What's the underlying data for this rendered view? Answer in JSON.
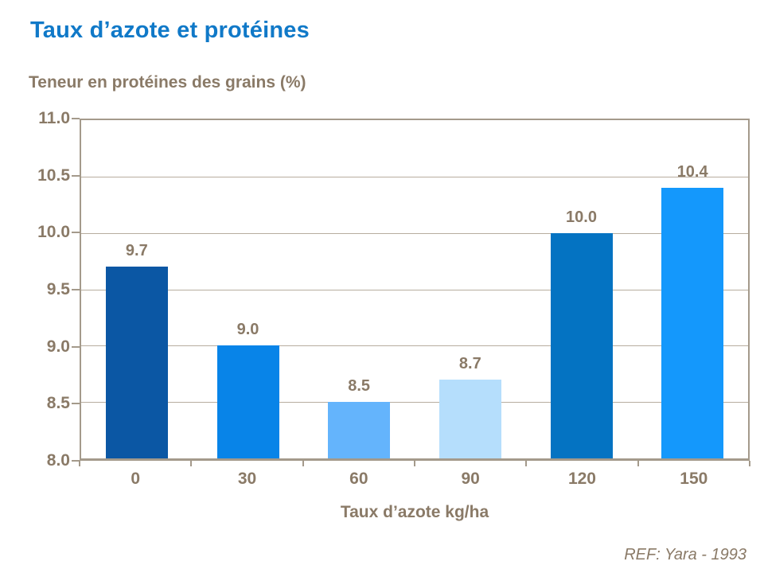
{
  "header": {
    "title": "Taux d’azote et protéines"
  },
  "chart_data": {
    "type": "bar",
    "title": "Taux d’azote et protéines",
    "subtitle": "Teneur en protéines des grains (%)",
    "categories": [
      "0",
      "30",
      "60",
      "90",
      "120",
      "150"
    ],
    "values": [
      9.7,
      9.0,
      8.5,
      8.7,
      10.0,
      10.4
    ],
    "value_labels": [
      "9.7",
      "9.0",
      "8.5",
      "8.7",
      "10.0",
      "10.4"
    ],
    "bar_colors": [
      "#0b57a4",
      "#0884e8",
      "#64b4fc",
      "#b5defc",
      "#0473c2",
      "#1498fc"
    ],
    "xlabel": "Taux d’azote kg/ha",
    "ylabel": "Teneur en protéines des grains (%)",
    "ylim": [
      8.0,
      11.0
    ],
    "ytick_step": 0.5,
    "ytick_labels": [
      "8.0",
      "8.5",
      "9.0",
      "9.5",
      "10.0",
      "10.5",
      "11.0"
    ],
    "grid": true,
    "legend": false
  },
  "footer": {
    "reference": "REF: Yara - 1993"
  },
  "colors": {
    "title_text": "#1079c8",
    "body_text": "#8a7a67",
    "gridline": "#b7ad9f",
    "axis": "#a49a8b",
    "background": "#ffffff"
  }
}
